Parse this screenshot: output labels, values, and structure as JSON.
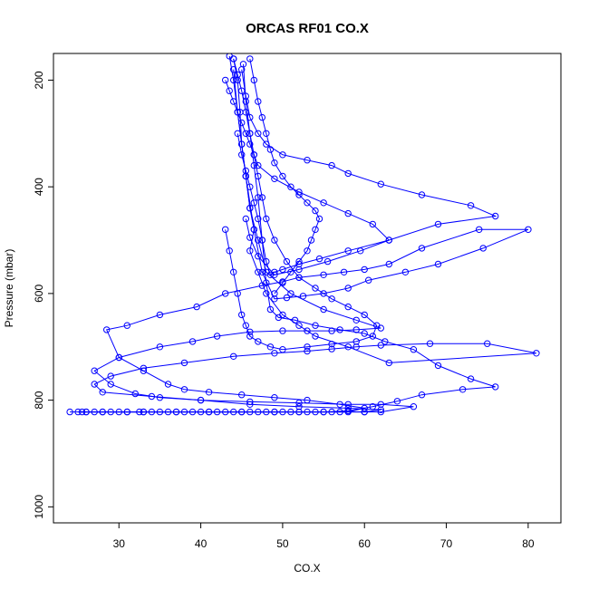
{
  "chart_data": {
    "type": "scatter",
    "title": "ORCAS RF01 CO.X",
    "xlabel": "CO.X",
    "ylabel": "Pressure (mbar)",
    "xlim": [
      22,
      84
    ],
    "ylim": [
      1030,
      150
    ],
    "y_reversed": true,
    "grid": false,
    "legend": "none",
    "x_ticks": [
      30,
      40,
      50,
      60,
      70,
      80
    ],
    "y_ticks": [
      200,
      400,
      600,
      800,
      1000
    ],
    "x_tick_labels": [
      "30",
      "40",
      "50",
      "60",
      "70",
      "80"
    ],
    "y_tick_labels": [
      "200",
      "400",
      "600",
      "800",
      "1000"
    ],
    "color": "#0000ff",
    "marker": "open-circle",
    "series": [
      {
        "x": [
          24.0,
          26.0,
          28.0,
          31.0,
          33.0,
          35.0,
          37.0,
          39.0,
          41.0,
          43.0,
          45.0,
          47.0,
          49.0,
          51.0,
          53.0,
          55.0,
          57.0,
          60.0,
          62.0,
          66.0,
          62.0,
          58.0,
          52.0,
          46.0,
          40.0,
          34.0,
          28.0,
          27.0,
          29.0,
          33.0,
          38.0,
          44.0,
          49.0,
          53.0,
          56.0,
          59.0,
          62.0,
          68.0,
          75.0,
          81.0,
          63.0,
          58.0,
          54.0,
          52.0,
          50.0,
          48.0,
          47.0,
          46.0,
          46.5,
          46.0,
          45.5,
          45.0,
          44.5,
          44.0,
          43.5
        ],
        "y": [
          822,
          822,
          822,
          822,
          822,
          822,
          822,
          822,
          822,
          822,
          822,
          822,
          822,
          822,
          822,
          822,
          822,
          822,
          822,
          812,
          808,
          808,
          805,
          803,
          800,
          793,
          785,
          770,
          755,
          740,
          730,
          718,
          712,
          708,
          704,
          700,
          697,
          694,
          694,
          712,
          730,
          700,
          680,
          660,
          640,
          600,
          560,
          520,
          480,
          440,
          380,
          320,
          260,
          200,
          155
        ]
      },
      {
        "x": [
          25.0,
          27.0,
          30.0,
          33.0,
          37.0,
          41.0,
          45.0,
          49.0,
          52.0,
          56.0,
          60.0,
          62.0,
          58.0,
          52.0,
          46.0,
          40.0,
          35.0,
          32.0,
          29.0,
          27.0,
          30.0,
          35.0,
          39.0,
          42.0,
          46.0,
          50.0,
          53.0,
          56.0,
          59.0,
          62.0,
          59.0,
          55.0,
          51.0,
          48.0,
          47.0,
          46.0,
          45.5,
          45.0,
          44.8,
          44.5,
          44.0
        ],
        "y": [
          822,
          822,
          822,
          822,
          822,
          822,
          822,
          822,
          822,
          822,
          822,
          818,
          815,
          812,
          808,
          800,
          795,
          788,
          770,
          745,
          720,
          700,
          690,
          680,
          672,
          670,
          670,
          670,
          668,
          665,
          650,
          630,
          600,
          560,
          500,
          440,
          380,
          320,
          260,
          200,
          160
        ]
      },
      {
        "x": [
          25.5,
          28.0,
          31.0,
          34.0,
          38.0,
          42.0,
          46.0,
          50.0,
          54.0,
          58.0,
          60.0,
          57.0,
          53.0,
          49.0,
          45.0,
          41.0,
          38.0,
          36.0,
          33.0,
          30.0,
          28.5,
          31.0,
          35.0,
          39.5,
          43.0,
          47.5,
          50.0,
          52.0,
          55.0,
          57.5,
          60.0,
          63.0,
          67.0,
          74.0,
          80.0,
          74.5,
          69.0,
          65.0,
          60.5,
          58.0,
          55.0,
          52.5,
          50.5,
          49.0,
          47.5,
          46.5,
          45.5,
          44.5,
          44.0
        ],
        "y": [
          822,
          822,
          822,
          822,
          822,
          822,
          822,
          822,
          822,
          822,
          815,
          808,
          800,
          795,
          790,
          785,
          780,
          770,
          745,
          720,
          668,
          660,
          640,
          625,
          600,
          585,
          578,
          570,
          565,
          560,
          555,
          545,
          515,
          480,
          480,
          515,
          545,
          560,
          575,
          590,
          600,
          605,
          608,
          610,
          560,
          480,
          380,
          260,
          180
        ]
      },
      {
        "x": [
          26.0,
          29.0,
          32.5,
          36.0,
          40.0,
          44.0,
          48.0,
          52.0,
          55.0,
          58.0,
          61.0,
          64.0,
          67.0,
          72.0,
          76.0,
          73.0,
          69.0,
          66.0,
          62.5,
          60.0,
          57.0,
          54.0,
          51.5,
          49.5,
          48.5,
          48.0,
          47.5,
          47.0,
          46.5,
          46.0,
          45.5,
          45.2
        ],
        "y": [
          822,
          822,
          822,
          822,
          822,
          822,
          822,
          822,
          822,
          820,
          812,
          802,
          790,
          780,
          775,
          760,
          735,
          705,
          690,
          675,
          668,
          660,
          650,
          645,
          630,
          580,
          500,
          420,
          360,
          300,
          240,
          170
        ]
      },
      {
        "x": [
          44.0,
          44.5,
          45.0,
          45.5,
          46.0,
          46.5,
          47.0,
          47.5,
          48.0,
          49.0,
          50.5,
          52.0,
          54.0,
          56.0,
          58.0,
          60.0,
          61.5,
          61.0,
          59.0,
          56.0,
          53.0,
          50.0,
          48.5,
          47.0,
          46.0,
          45.5,
          45.0,
          44.5,
          44.0,
          43.5,
          43.0
        ],
        "y": [
          160,
          190,
          220,
          260,
          300,
          340,
          380,
          420,
          460,
          500,
          540,
          570,
          590,
          610,
          625,
          640,
          660,
          680,
          690,
          695,
          700,
          705,
          700,
          690,
          680,
          660,
          640,
          600,
          560,
          520,
          480
        ]
      },
      {
        "x": [
          45.0,
          45.5,
          46.0,
          47.0,
          48.0,
          50.0,
          53.0,
          56.0,
          58.0,
          62.0,
          67.0,
          73.0,
          76.0,
          69.0,
          63.0,
          58.0,
          54.5,
          52.0,
          50.0,
          49.0,
          48.5,
          48.0,
          47.5,
          47.0,
          46.5,
          46.0,
          45.5,
          45.0,
          44.5
        ],
        "y": [
          180,
          230,
          270,
          300,
          320,
          340,
          350,
          360,
          375,
          395,
          415,
          435,
          455,
          470,
          500,
          520,
          535,
          545,
          555,
          560,
          565,
          540,
          500,
          460,
          430,
          400,
          370,
          340,
          300
        ]
      },
      {
        "x": [
          43.0,
          43.5,
          44.0,
          44.5,
          45.0,
          45.5,
          46.0,
          46.5,
          47.0,
          49.0,
          52.0,
          55.0,
          58.0,
          61.0,
          63.0,
          59.5,
          55.5,
          52.0,
          49.0,
          47.0,
          46.0,
          45.5
        ],
        "y": [
          200,
          220,
          240,
          260,
          280,
          300,
          320,
          340,
          360,
          385,
          410,
          430,
          450,
          470,
          500,
          520,
          540,
          555,
          565,
          530,
          495,
          460
        ]
      },
      {
        "x": [
          46.0,
          46.5,
          47.0,
          47.5,
          48.0,
          48.5,
          49.0,
          50.0,
          51.0,
          52.0,
          53.0,
          54.0,
          54.5,
          54.0,
          53.5,
          53.0,
          52.0,
          51.0,
          50.0,
          49.0
        ],
        "y": [
          160,
          200,
          240,
          270,
          300,
          330,
          355,
          380,
          400,
          415,
          430,
          445,
          460,
          480,
          500,
          520,
          540,
          560,
          580,
          600
        ]
      }
    ]
  }
}
